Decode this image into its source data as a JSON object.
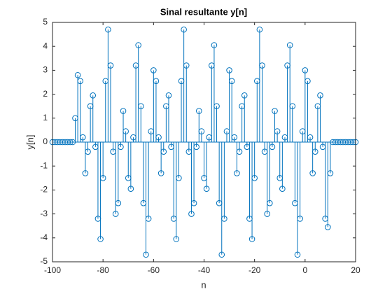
{
  "chart_data": {
    "type": "stem",
    "title": "Sinal resultante y[n]",
    "xlabel": "n",
    "ylabel": "y[n]",
    "x": [
      -100,
      -99,
      -98,
      -97,
      -96,
      -95,
      -94,
      -93,
      -92,
      -91,
      -90,
      -89,
      -88,
      -87,
      -86,
      -85,
      -84,
      -83,
      -82,
      -81,
      -80,
      -79,
      -78,
      -77,
      -76,
      -75,
      -74,
      -73,
      -72,
      -71,
      -70,
      -69,
      -68,
      -67,
      -66,
      -65,
      -64,
      -63,
      -62,
      -61,
      -60,
      -59,
      -58,
      -57,
      -56,
      -55,
      -54,
      -53,
      -52,
      -51,
      -50,
      -49,
      -48,
      -47,
      -46,
      -45,
      -44,
      -43,
      -42,
      -41,
      -40,
      -39,
      -38,
      -37,
      -36,
      -35,
      -34,
      -33,
      -32,
      -31,
      -30,
      -29,
      -28,
      -27,
      -26,
      -25,
      -24,
      -23,
      -22,
      -21,
      -20,
      -19,
      -18,
      -17,
      -16,
      -15,
      -14,
      -13,
      -12,
      -11,
      -10,
      -9,
      -8,
      -7,
      -6,
      -5,
      -4,
      -3,
      -2,
      -1,
      0,
      1,
      2,
      3,
      4,
      5,
      6,
      7,
      8,
      9,
      10,
      11,
      12,
      13,
      14,
      15,
      16,
      17,
      18,
      19,
      20
    ],
    "values": [
      0,
      0,
      0,
      0,
      0,
      0,
      0,
      0,
      0,
      1.0,
      2.8,
      2.55,
      0.2,
      -1.3,
      -0.4,
      1.5,
      1.95,
      -0.2,
      -3.2,
      -4.05,
      -1.5,
      2.55,
      4.7,
      3.2,
      -0.4,
      -3.0,
      -2.55,
      -0.2,
      1.3,
      0.45,
      -1.5,
      -1.95,
      0.2,
      3.2,
      4.05,
      1.5,
      -2.55,
      -4.7,
      -3.2,
      0.45,
      3.0,
      2.55,
      0.2,
      -1.3,
      -0.4,
      1.5,
      1.95,
      -0.2,
      -3.2,
      -4.05,
      -1.5,
      2.55,
      4.7,
      3.2,
      -0.4,
      -3.0,
      -2.55,
      -0.2,
      1.3,
      0.45,
      -1.5,
      -1.95,
      0.2,
      3.2,
      4.05,
      1.5,
      -2.55,
      -4.7,
      -3.2,
      0.45,
      3.0,
      2.55,
      0.2,
      -1.3,
      -0.4,
      1.5,
      1.95,
      -0.2,
      -3.2,
      -4.05,
      -1.5,
      2.55,
      4.7,
      3.2,
      -0.4,
      -3.0,
      -2.55,
      -0.2,
      1.3,
      0.45,
      -1.5,
      -1.95,
      0.2,
      3.2,
      4.05,
      1.5,
      -2.55,
      -4.7,
      -3.2,
      0.45,
      3.0,
      2.55,
      0.2,
      -1.3,
      -0.4,
      1.5,
      1.95,
      -0.2,
      -3.2,
      -3.55,
      -1.3,
      0,
      0,
      0,
      0,
      0,
      0,
      0,
      0,
      0,
      0
    ],
    "color": "#0072bd",
    "xlim": [
      -100,
      20
    ],
    "xticks": [
      -100,
      -80,
      -60,
      -40,
      -20,
      0,
      20
    ],
    "ylim": [
      -5,
      5
    ],
    "yticks": [
      -5,
      -4,
      -3,
      -2,
      -1,
      0,
      1,
      2,
      3,
      4,
      5
    ]
  }
}
